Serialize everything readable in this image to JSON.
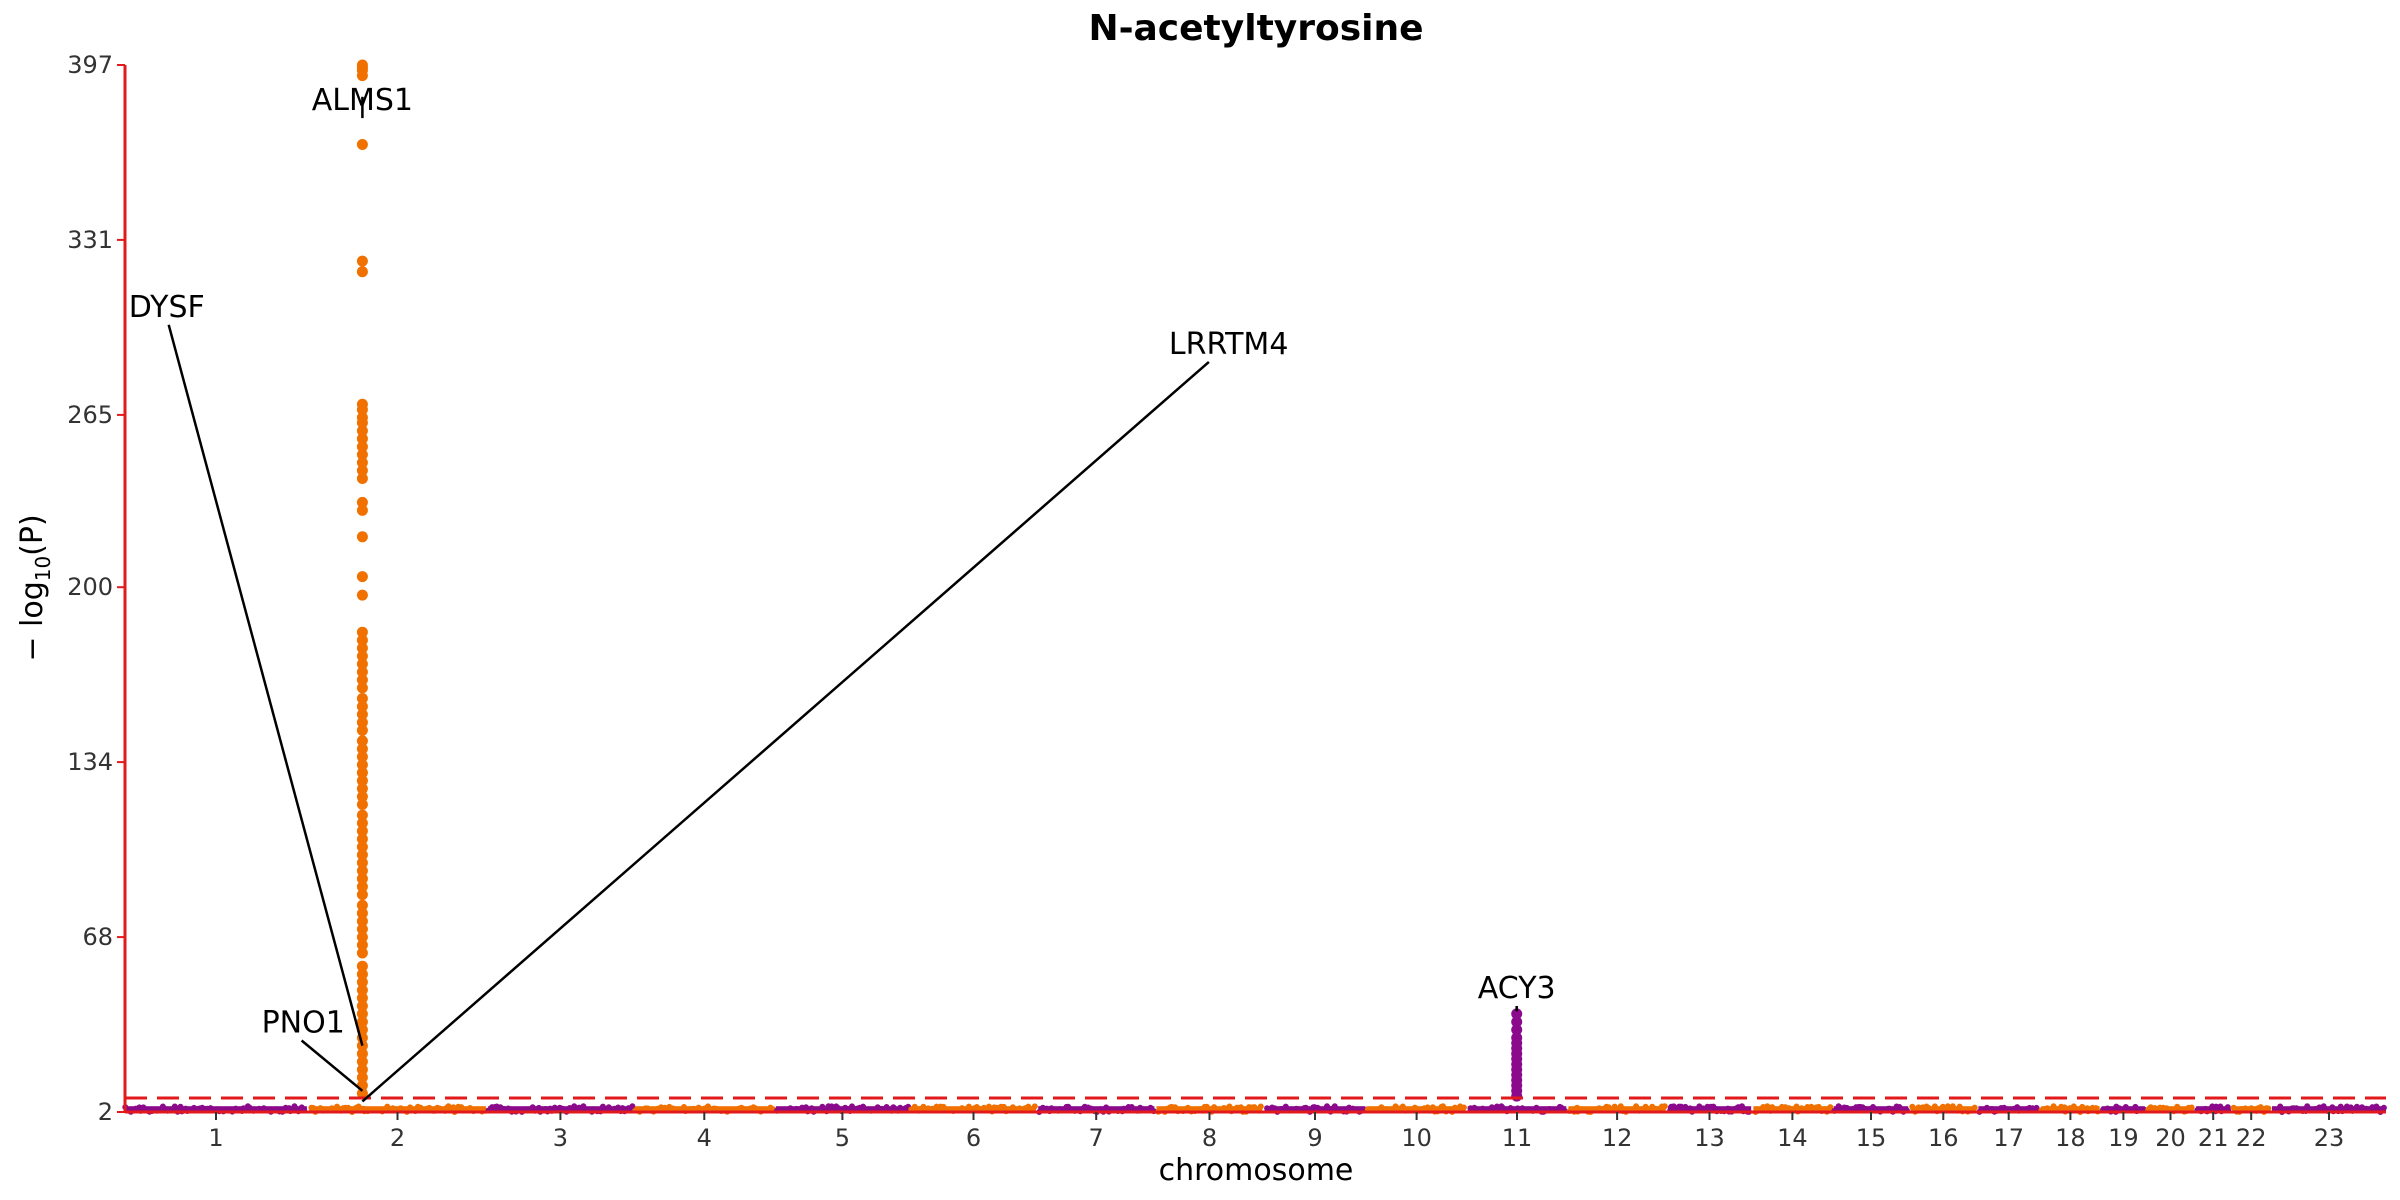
{
  "chart_data": {
    "type": "scatter",
    "title": "N-acetyltyrosine",
    "xlabel": "chromosome",
    "ylabel": "− log₁₀(P)",
    "ylabel_parts": {
      "prefix": "− log",
      "sub": "10",
      "suffix": "(P)"
    },
    "ylim": [
      2,
      397
    ],
    "yticks": [
      2,
      68,
      134,
      200,
      265,
      331,
      397
    ],
    "chromosomes": [
      "1",
      "2",
      "3",
      "4",
      "5",
      "6",
      "7",
      "8",
      "9",
      "10",
      "11",
      "12",
      "13",
      "14",
      "15",
      "16",
      "17",
      "18",
      "19",
      "20",
      "21",
      "22",
      "23"
    ],
    "chromosome_sizes": [
      249,
      242,
      198,
      190,
      182,
      171,
      159,
      145,
      138,
      134,
      135,
      133,
      114,
      107,
      102,
      90,
      83,
      80,
      59,
      64,
      47,
      51,
      156
    ],
    "colors": {
      "odd": "#8b0a8b",
      "even": "#f07000",
      "threshold": "#e31a1c",
      "axis": "#e31a1c"
    },
    "threshold": 7.3,
    "grid": false,
    "legend": "none",
    "peaks": [
      {
        "chromosome": "2",
        "position_mb": 73,
        "points": [
          397,
          396,
          395,
          393,
          367,
          323,
          319,
          269,
          267,
          264,
          262,
          259,
          256,
          253,
          250,
          247,
          244,
          241,
          232,
          229,
          219,
          204,
          197,
          183,
          180,
          177,
          174,
          171,
          168,
          165,
          162,
          158,
          155,
          152,
          149,
          146,
          142,
          139,
          136,
          133,
          130,
          127,
          124,
          121,
          118,
          114,
          111,
          108,
          105,
          102,
          99,
          96,
          93,
          90,
          87,
          84,
          80,
          77,
          74,
          71,
          68,
          65,
          62,
          57,
          54,
          51,
          48,
          45,
          42,
          39,
          36,
          33,
          30,
          27,
          24,
          21,
          18,
          15,
          12,
          9
        ]
      },
      {
        "chromosome": "11",
        "position_mb": 67,
        "points": [
          39,
          36,
          33,
          30,
          28,
          26,
          24,
          22,
          20,
          18,
          16,
          14,
          12,
          10,
          8
        ]
      }
    ],
    "annotations": [
      {
        "label": "ALMS1",
        "chromosome": "2",
        "position_mb": 73,
        "point_value": 385,
        "text_chr": "2",
        "text_mb": 73,
        "text_value": 380,
        "text_anchor": "middle"
      },
      {
        "label": "DYSF",
        "chromosome": "2",
        "position_mb": 73,
        "point_value": 27,
        "text_chr": "1",
        "text_mb": 5,
        "text_value": 302,
        "text_anchor": "start"
      },
      {
        "label": "LRRTM4",
        "chromosome": "2",
        "position_mb": 73,
        "point_value": 6,
        "text_chr": "8",
        "text_mb": 17,
        "text_value": 288,
        "text_anchor": "start"
      },
      {
        "label": "PNO1",
        "chromosome": "2",
        "position_mb": 73,
        "point_value": 10,
        "text_chr": "1",
        "text_mb": 187,
        "text_value": 32,
        "text_anchor": "start"
      },
      {
        "label": "ACY3",
        "chromosome": "11",
        "position_mb": 67,
        "point_value": 40,
        "text_chr": "11",
        "text_mb": 67,
        "text_value": 45,
        "text_anchor": "middle"
      }
    ]
  }
}
